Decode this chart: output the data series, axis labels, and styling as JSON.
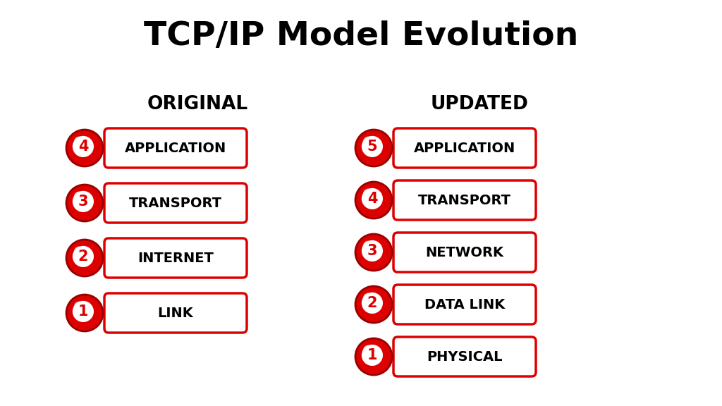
{
  "title": "TCP/IP Model Evolution",
  "title_fontsize": 34,
  "background_color": "#ffffff",
  "col_headers": [
    "ORIGINAL",
    "UPDATED"
  ],
  "col_header_fontsize": 19,
  "original_layers": [
    {
      "num": "4",
      "label": "APPLICATION"
    },
    {
      "num": "3",
      "label": "TRANSPORT"
    },
    {
      "num": "2",
      "label": "INTERNET"
    },
    {
      "num": "1",
      "label": "LINK"
    }
  ],
  "updated_layers": [
    {
      "num": "5",
      "label": "APPLICATION"
    },
    {
      "num": "4",
      "label": "TRANSPORT"
    },
    {
      "num": "3",
      "label": "NETWORK"
    },
    {
      "num": "2",
      "label": "DATA LINK"
    },
    {
      "num": "1",
      "label": "PHYSICAL"
    }
  ],
  "badge_color_outer": "#dd0000",
  "badge_color_inner": "#ffffff",
  "badge_number_color": "#dd0000",
  "box_edge_color": "#dd0000",
  "box_fill_color": "#ffffff",
  "box_text_color": "#000000",
  "label_fontsize": 14,
  "num_fontsize": 15
}
